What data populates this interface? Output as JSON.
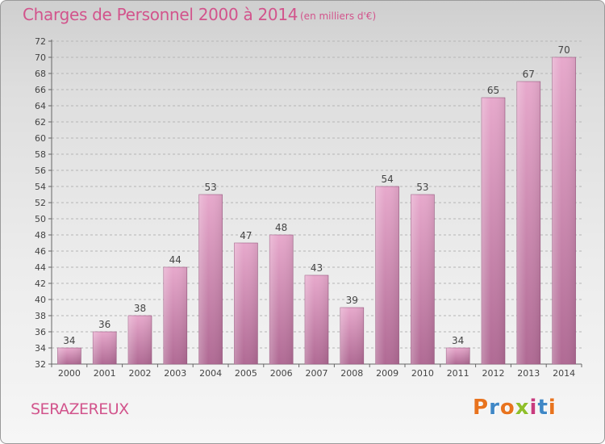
{
  "header": {
    "title": "Charges de Personnel 2000 à 2014",
    "subtitle": "(en milliers d'€)"
  },
  "footer": {
    "commune": "SERAZEREUX",
    "logo_text": "Proxiti",
    "logo_colors": [
      "#e8731e",
      "#3f87c6",
      "#e8731e",
      "#8fbf2a",
      "#c83b7e",
      "#3f87c6",
      "#e8731e"
    ]
  },
  "colors": {
    "bar_top": "#e7a9cc",
    "bar_bottom": "#b06a94",
    "accent": "#d2548c"
  },
  "chart_data": {
    "type": "bar",
    "categories": [
      "2000",
      "2001",
      "2002",
      "2003",
      "2004",
      "2005",
      "2006",
      "2007",
      "2008",
      "2009",
      "2010",
      "2011",
      "2012",
      "2013",
      "2014"
    ],
    "values": [
      34,
      36,
      38,
      44,
      53,
      47,
      48,
      43,
      39,
      54,
      53,
      34,
      65,
      67,
      70
    ],
    "title": "Charges de Personnel 2000 à 2014",
    "subtitle": "(en milliers d'€)",
    "xlabel": "",
    "ylabel": "",
    "ylim": [
      32,
      72
    ],
    "yticks": [
      32,
      34,
      36,
      38,
      40,
      42,
      44,
      46,
      48,
      50,
      52,
      54,
      56,
      58,
      60,
      62,
      64,
      66,
      68,
      70,
      72
    ],
    "grid": "horizontal dashed",
    "data_labels": true
  }
}
